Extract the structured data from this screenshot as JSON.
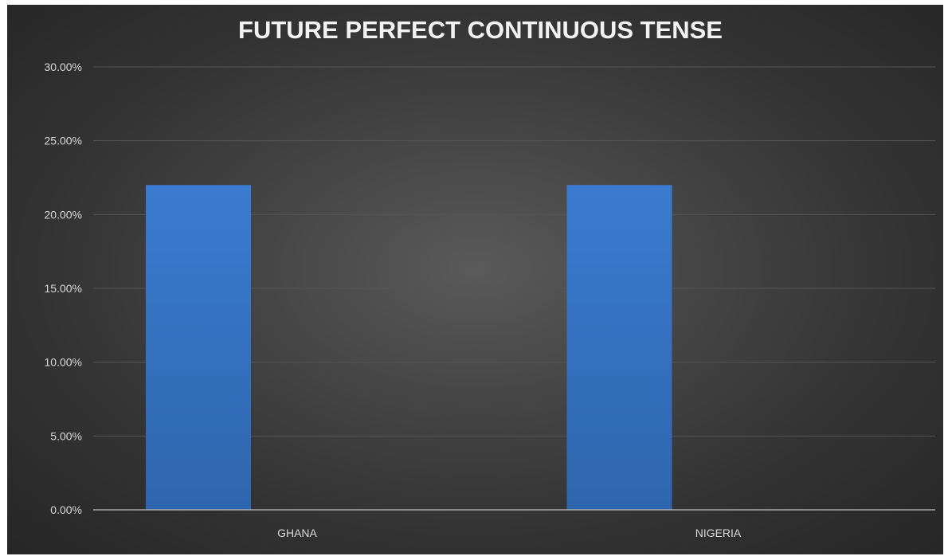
{
  "chart_data": {
    "type": "bar",
    "title": "FUTURE PERFECT CONTINUOUS TENSE",
    "xlabel": "",
    "ylabel": "",
    "categories": [
      "GHANA",
      "NIGERIA"
    ],
    "values": [
      22.0,
      22.0
    ],
    "value_format": "percent",
    "ylim": [
      0,
      30
    ],
    "yticks": [
      0,
      5,
      10,
      15,
      20,
      25,
      30
    ],
    "ytick_labels": [
      "0.00%",
      "5.00%",
      "10.00%",
      "15.00%",
      "20.00%",
      "25.00%",
      "30.00%"
    ],
    "grid": true,
    "legend": "none",
    "colors": {
      "bar": "#3a7bd0",
      "bar_bottom": "#2e66ad",
      "background": "#3a3a3a",
      "grid": "#555555",
      "text": "#d9d9d9",
      "title": "#f2f2f2"
    }
  }
}
